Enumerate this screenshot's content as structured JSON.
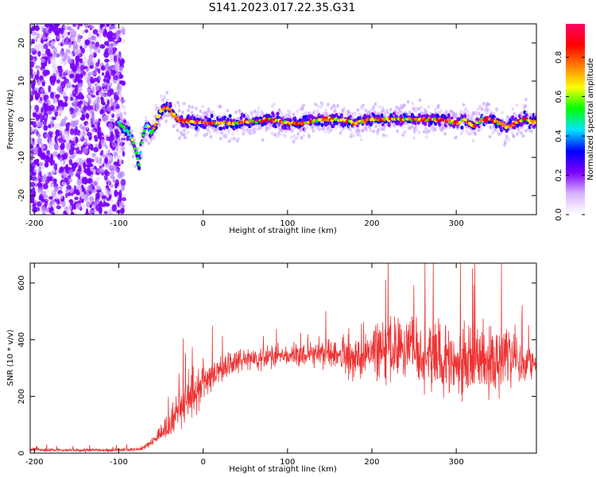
{
  "title": "S141.2023.017.22.35.G31",
  "chart_data": [
    {
      "type": "heatmap",
      "xlabel": "Height of straight line (km)",
      "ylabel": "Frequency (Hz)",
      "xlim": [
        -205,
        395
      ],
      "ylim": [
        -25,
        25
      ],
      "xticks": [
        -200,
        -100,
        0,
        100,
        200,
        300
      ],
      "yticks": [
        -20,
        -10,
        0,
        10,
        20
      ],
      "grid": false,
      "noise_region_x": [
        -205,
        -100
      ],
      "ridge": {
        "name": "dominant frequency",
        "x": [
          -100,
          -90,
          -85,
          -80,
          -76,
          -73,
          -70,
          -66,
          -62,
          -58,
          -54,
          -50,
          -46,
          -42,
          -38,
          -34,
          -30,
          -20,
          0,
          20,
          40,
          60,
          80,
          100,
          120,
          140,
          160,
          180,
          200,
          220,
          240,
          260,
          280,
          300,
          310,
          320,
          330,
          340,
          350,
          360,
          370,
          380,
          395
        ],
        "y": [
          -1,
          -3,
          -5,
          -8,
          -12,
          -6,
          -3,
          -1,
          -4,
          -2,
          0,
          2,
          3,
          3,
          2,
          1,
          0,
          -0.5,
          -1,
          -1,
          -1,
          -0.5,
          0,
          -1,
          -1,
          0,
          0,
          -1,
          0,
          0,
          0,
          0,
          0,
          -1,
          0,
          -2,
          0,
          0,
          -1,
          -2,
          -1,
          0,
          -1
        ]
      },
      "colorbar": {
        "label": "Normalized spectral amplitude",
        "ticks": [
          0.0,
          0.2,
          0.4,
          0.6,
          0.8
        ],
        "range": [
          0,
          0.97
        ],
        "colormap": [
          "#ffffff",
          "#d9b3ff",
          "#7a00ff",
          "#0000ff",
          "#00e5ff",
          "#00ff00",
          "#ffff00",
          "#ff8000",
          "#ff0000",
          "#ff0066"
        ]
      }
    },
    {
      "type": "line",
      "xlabel": "Height of straight line (km)",
      "ylabel": "SNR (10 * v/v)",
      "xlim": [
        -205,
        395
      ],
      "ylim": [
        0,
        670
      ],
      "xticks": [
        -200,
        -100,
        0,
        100,
        200,
        300
      ],
      "yticks": [
        0,
        200,
        400,
        600
      ],
      "grid": false,
      "color": "#ee3333",
      "series": [
        {
          "x": [
            -205,
            -150,
            -100,
            -80,
            -70,
            -60,
            -50,
            -40,
            -30,
            -20,
            -10,
            0,
            10,
            20,
            30,
            40,
            50,
            60,
            80,
            100,
            120,
            140,
            160,
            180,
            200,
            210,
            220,
            230,
            240,
            250,
            260,
            270,
            280,
            290,
            300,
            310,
            320,
            330,
            340,
            350,
            360,
            370,
            380,
            395
          ],
          "values": [
            12,
            10,
            11,
            12,
            20,
            40,
            70,
            100,
            140,
            180,
            220,
            250,
            275,
            300,
            315,
            325,
            330,
            335,
            340,
            345,
            345,
            350,
            350,
            355,
            360,
            360,
            355,
            365,
            360,
            360,
            345,
            350,
            345,
            340,
            330,
            340,
            330,
            335,
            330,
            320,
            335,
            330,
            320,
            305
          ],
          "spread": [
            10,
            10,
            10,
            10,
            15,
            25,
            50,
            90,
            110,
            130,
            120,
            110,
            90,
            80,
            70,
            65,
            60,
            60,
            60,
            65,
            70,
            80,
            110,
            140,
            170,
            180,
            190,
            210,
            230,
            220,
            200,
            200,
            190,
            190,
            200,
            200,
            210,
            220,
            220,
            200,
            190,
            150,
            110,
            80
          ]
        }
      ]
    }
  ]
}
